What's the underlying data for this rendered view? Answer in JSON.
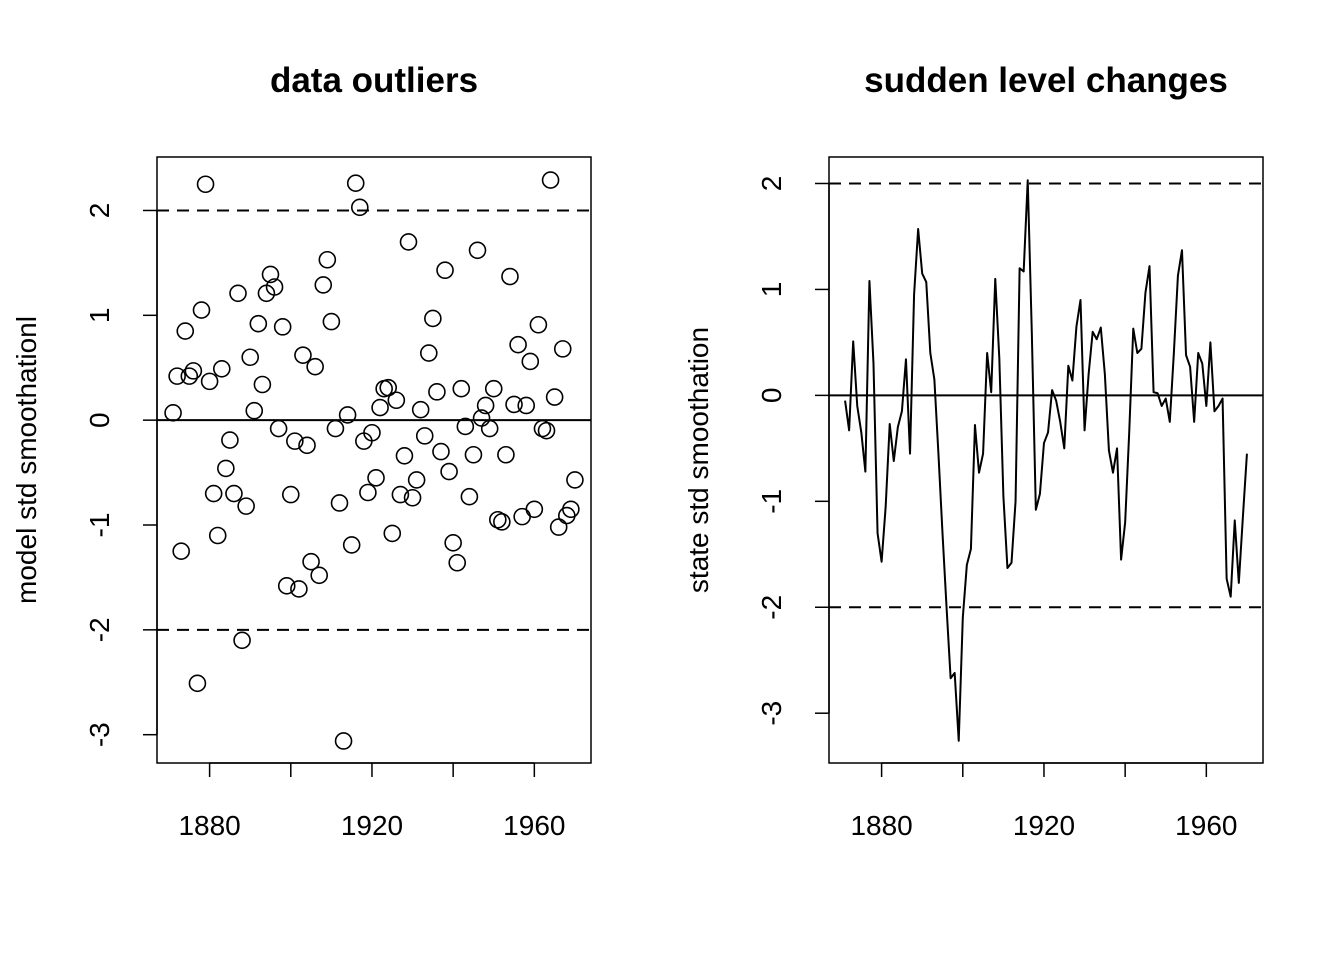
{
  "chart_data": [
    {
      "type": "scatter",
      "title": "data outliers",
      "ylabel": "model std smoothationl",
      "color": "#000000",
      "x": [
        1871,
        1872,
        1873,
        1874,
        1875,
        1876,
        1877,
        1878,
        1879,
        1880,
        1881,
        1882,
        1883,
        1884,
        1885,
        1886,
        1887,
        1888,
        1889,
        1890,
        1891,
        1892,
        1893,
        1894,
        1895,
        1896,
        1897,
        1898,
        1899,
        1900,
        1901,
        1902,
        1903,
        1904,
        1905,
        1906,
        1907,
        1908,
        1909,
        1910,
        1911,
        1912,
        1913,
        1914,
        1915,
        1916,
        1917,
        1918,
        1919,
        1920,
        1921,
        1922,
        1923,
        1924,
        1925,
        1926,
        1927,
        1928,
        1929,
        1930,
        1931,
        1932,
        1933,
        1934,
        1935,
        1936,
        1937,
        1938,
        1939,
        1940,
        1941,
        1942,
        1943,
        1944,
        1945,
        1946,
        1947,
        1948,
        1949,
        1950,
        1951,
        1952,
        1953,
        1954,
        1955,
        1956,
        1957,
        1958,
        1959,
        1960,
        1961,
        1962,
        1963,
        1964,
        1965,
        1966,
        1967,
        1968,
        1969,
        1970
      ],
      "values": [
        0.07,
        0.42,
        -1.25,
        0.85,
        0.42,
        0.47,
        -2.51,
        1.05,
        2.25,
        0.37,
        -0.7,
        -1.1,
        0.49,
        -0.46,
        -0.19,
        -0.7,
        1.21,
        -2.1,
        -0.82,
        0.6,
        0.09,
        0.92,
        0.34,
        1.21,
        1.39,
        1.27,
        -0.08,
        0.89,
        -1.58,
        -0.71,
        -0.2,
        -1.61,
        0.62,
        -0.24,
        -1.35,
        0.51,
        -1.48,
        1.29,
        1.53,
        0.94,
        -0.08,
        -0.79,
        -3.06,
        0.05,
        -1.19,
        2.26,
        2.03,
        -0.2,
        -0.69,
        -0.12,
        -0.55,
        0.12,
        0.3,
        0.31,
        -1.08,
        0.19,
        -0.71,
        -0.34,
        1.7,
        -0.74,
        -0.57,
        0.1,
        -0.15,
        0.64,
        0.97,
        0.27,
        -0.3,
        1.43,
        -0.49,
        -1.17,
        -1.36,
        0.3,
        -0.06,
        -0.73,
        -0.33,
        1.62,
        0.02,
        0.14,
        -0.08,
        0.3,
        -0.95,
        -0.97,
        -0.33,
        1.37,
        0.15,
        0.72,
        -0.92,
        0.14,
        0.56,
        -0.85,
        0.91,
        -0.08,
        -0.1,
        2.29,
        0.22,
        -1.02,
        0.68,
        -0.91,
        -0.85,
        -0.57
      ],
      "xlim": [
        1867.04,
        1973.96
      ],
      "ylim": [
        -3.27,
        2.51
      ],
      "xticks": [
        1880,
        1920,
        1960
      ],
      "xminor_ticks": [
        1900,
        1940
      ],
      "yticks": [
        -3,
        -2,
        -1,
        0,
        1,
        2
      ],
      "hlines": [
        {
          "value": 2,
          "style": "dashed"
        },
        {
          "value": -2,
          "style": "dashed"
        },
        {
          "value": 0,
          "style": "solid"
        }
      ]
    },
    {
      "type": "line",
      "title": "sudden level changes",
      "ylabel": "state std smoothation",
      "color": "#000000",
      "x": [
        1871,
        1872,
        1873,
        1874,
        1875,
        1876,
        1877,
        1878,
        1879,
        1880,
        1881,
        1882,
        1883,
        1884,
        1885,
        1886,
        1887,
        1888,
        1889,
        1890,
        1891,
        1892,
        1893,
        1894,
        1895,
        1896,
        1897,
        1898,
        1899,
        1900,
        1901,
        1902,
        1903,
        1904,
        1905,
        1906,
        1907,
        1908,
        1909,
        1910,
        1911,
        1912,
        1913,
        1914,
        1915,
        1916,
        1917,
        1918,
        1919,
        1920,
        1921,
        1922,
        1923,
        1924,
        1925,
        1926,
        1927,
        1928,
        1929,
        1930,
        1931,
        1932,
        1933,
        1934,
        1935,
        1936,
        1937,
        1938,
        1939,
        1940,
        1941,
        1942,
        1943,
        1944,
        1945,
        1946,
        1947,
        1948,
        1949,
        1950,
        1951,
        1952,
        1953,
        1954,
        1955,
        1956,
        1957,
        1958,
        1959,
        1960,
        1961,
        1962,
        1963,
        1964,
        1965,
        1966,
        1967,
        1968,
        1969,
        1970
      ],
      "values": [
        -0.05,
        -0.33,
        0.51,
        -0.1,
        -0.35,
        -0.72,
        1.08,
        0.3,
        -1.3,
        -1.57,
        -1.05,
        -0.27,
        -0.62,
        -0.3,
        -0.15,
        0.34,
        -0.55,
        0.95,
        1.57,
        1.15,
        1.07,
        0.4,
        0.15,
        -0.55,
        -1.3,
        -2.0,
        -2.67,
        -2.62,
        -3.26,
        -2.1,
        -1.6,
        -1.45,
        -0.28,
        -0.73,
        -0.55,
        0.4,
        0.03,
        1.1,
        0.35,
        -0.95,
        -1.63,
        -1.58,
        -1.0,
        1.2,
        1.17,
        2.03,
        0.6,
        -1.08,
        -0.93,
        -0.45,
        -0.35,
        0.05,
        -0.05,
        -0.25,
        -0.5,
        0.28,
        0.14,
        0.65,
        0.9,
        -0.33,
        0.2,
        0.6,
        0.53,
        0.64,
        0.2,
        -0.52,
        -0.73,
        -0.5,
        -1.55,
        -1.2,
        -0.35,
        0.63,
        0.4,
        0.44,
        0.97,
        1.22,
        0.03,
        0.02,
        -0.1,
        -0.03,
        -0.25,
        0.4,
        1.13,
        1.37,
        0.38,
        0.27,
        -0.25,
        0.4,
        0.3,
        -0.1,
        0.5,
        -0.15,
        -0.1,
        -0.03,
        -1.73,
        -1.9,
        -1.18,
        -1.77,
        -1.15,
        -0.55
      ],
      "xlim": [
        1867.04,
        1973.96
      ],
      "ylim": [
        -3.47,
        2.25
      ],
      "xticks": [
        1880,
        1920,
        1960
      ],
      "xminor_ticks": [
        1900,
        1940
      ],
      "yticks": [
        -3,
        -2,
        -1,
        0,
        1,
        2
      ],
      "hlines": [
        {
          "value": 2,
          "style": "dashed"
        },
        {
          "value": -2,
          "style": "dashed"
        },
        {
          "value": 0,
          "style": "solid"
        }
      ]
    }
  ]
}
